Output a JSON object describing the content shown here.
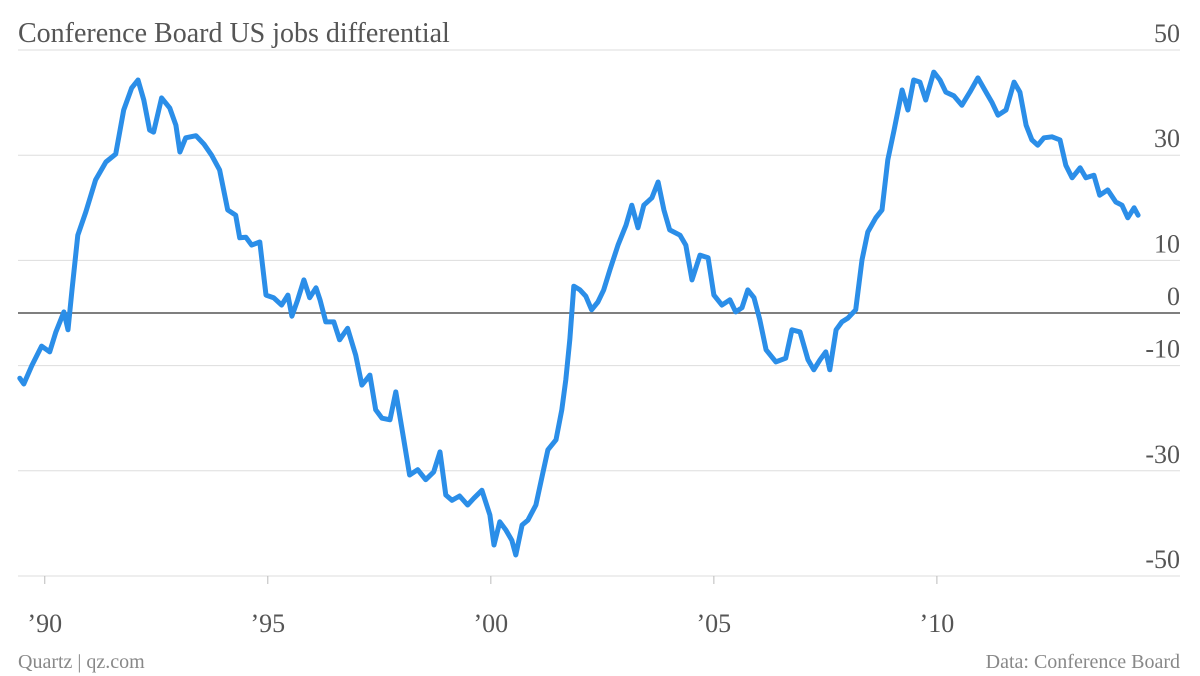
{
  "chart_data": {
    "type": "line",
    "title": "Conference Board US jobs differential",
    "source": "Data: Conference Board",
    "credit": "Quartz | qz.com",
    "color": "#2b8ee8",
    "xlim": [
      1989.4,
      2015.45
    ],
    "ylim": [
      -50,
      50
    ],
    "xticks": [
      {
        "value": 1990,
        "label": "’90"
      },
      {
        "value": 1995,
        "label": "’95"
      },
      {
        "value": 2000,
        "label": "’00"
      },
      {
        "value": 2005,
        "label": "’05"
      },
      {
        "value": 2010,
        "label": "’10"
      }
    ],
    "yticks": [
      50,
      30,
      10,
      0,
      -10,
      -30,
      -50
    ],
    "grid": true,
    "x": [
      1989.44,
      1989.53,
      1989.71,
      1989.93,
      1990.11,
      1990.25,
      1990.43,
      1990.52,
      1990.61,
      1990.74,
      1990.92,
      1991.14,
      1991.37,
      1991.59,
      1991.77,
      1991.95,
      1992.09,
      1992.22,
      1992.35,
      1992.44,
      1992.62,
      1992.8,
      1992.94,
      1993.03,
      1993.16,
      1993.39,
      1993.57,
      1993.74,
      1993.92,
      1994.1,
      1994.28,
      1994.37,
      1994.51,
      1994.64,
      1994.82,
      1994.96,
      1995.13,
      1995.31,
      1995.45,
      1995.54,
      1995.67,
      1995.81,
      1995.94,
      1996.08,
      1996.17,
      1996.3,
      1996.48,
      1996.61,
      1996.79,
      1996.97,
      1997.11,
      1997.29,
      1997.42,
      1997.56,
      1997.74,
      1997.87,
      1998.05,
      1998.18,
      1998.36,
      1998.54,
      1998.72,
      1998.86,
      1998.99,
      1999.13,
      1999.3,
      1999.48,
      1999.62,
      1999.8,
      1999.98,
      2000.07,
      2000.2,
      2000.34,
      2000.47,
      2000.56,
      2000.7,
      2000.83,
      2001.01,
      2001.14,
      2001.28,
      2001.46,
      2001.59,
      2001.68,
      2001.77,
      2001.86,
      2002.0,
      2002.13,
      2002.26,
      2002.4,
      2002.53,
      2002.67,
      2002.85,
      2003.03,
      2003.16,
      2003.3,
      2003.43,
      2003.61,
      2003.75,
      2003.88,
      2004.01,
      2004.24,
      2004.37,
      2004.51,
      2004.69,
      2004.87,
      2005.0,
      2005.18,
      2005.36,
      2005.49,
      2005.63,
      2005.76,
      2005.9,
      2006.03,
      2006.17,
      2006.39,
      2006.61,
      2006.75,
      2006.93,
      2007.11,
      2007.24,
      2007.38,
      2007.51,
      2007.6,
      2007.74,
      2007.87,
      2008.0,
      2008.18,
      2008.32,
      2008.45,
      2008.63,
      2008.77,
      2008.9,
      2009.04,
      2009.22,
      2009.35,
      2009.48,
      2009.62,
      2009.75,
      2009.93,
      2010.07,
      2010.2,
      2010.38,
      2010.56,
      2010.74,
      2010.92,
      2011.1,
      2011.23,
      2011.37,
      2011.55,
      2011.73,
      2011.86,
      2012.0,
      2012.13,
      2012.26,
      2012.4,
      2012.58,
      2012.76,
      2012.89,
      2013.03,
      2013.21,
      2013.34,
      2013.52,
      2013.65,
      2013.83,
      2014.01,
      2014.15,
      2014.28,
      2014.42,
      2014.51
    ],
    "values": [
      -12.4,
      -13.5,
      -10,
      -6.3,
      -7.4,
      -3.6,
      0.2,
      -3.2,
      4.4,
      14.8,
      19.2,
      25.3,
      28.7,
      30.2,
      38.6,
      42.8,
      44.3,
      40.5,
      34.8,
      34.4,
      40.9,
      39,
      35.7,
      30.6,
      33.3,
      33.7,
      32.1,
      30,
      27.2,
      19.6,
      18.6,
      14.3,
      14.4,
      12.9,
      13.5,
      3.4,
      2.9,
      1.5,
      3.4,
      -0.6,
      2.5,
      6.3,
      2.9,
      4.8,
      2.5,
      -1.7,
      -1.7,
      -5.1,
      -2.9,
      -8,
      -13.7,
      -11.8,
      -18.4,
      -20,
      -20.3,
      -15,
      -24.1,
      -30.8,
      -29.8,
      -31.7,
      -30.2,
      -26.4,
      -34.6,
      -35.6,
      -34.8,
      -36.5,
      -35.2,
      -33.7,
      -38.4,
      -44.1,
      -39.7,
      -41.3,
      -43.2,
      -46,
      -40.3,
      -39.4,
      -36.5,
      -31.4,
      -26,
      -24.1,
      -18.4,
      -12.7,
      -5.1,
      5.1,
      4.4,
      3.2,
      0.6,
      2.1,
      4.4,
      8.2,
      12.9,
      16.7,
      20.5,
      16.2,
      20.5,
      21.9,
      24.9,
      19.6,
      15.8,
      14.8,
      12.9,
      6.3,
      11,
      10.5,
      3.4,
      1.5,
      2.5,
      0.2,
      1,
      4.4,
      2.9,
      -1.3,
      -7,
      -9.3,
      -8.6,
      -3.2,
      -3.6,
      -8.9,
      -10.8,
      -8.9,
      -7.4,
      -10.8,
      -3.2,
      -1.7,
      -1,
      0.6,
      10.1,
      15.4,
      18.1,
      19.6,
      29.1,
      34.8,
      42.4,
      38.6,
      44.3,
      43.9,
      40.5,
      45.8,
      44.3,
      42,
      41.3,
      39.5,
      42,
      44.7,
      42,
      40.1,
      37.6,
      38.6,
      43.9,
      42,
      35.7,
      32.9,
      31.9,
      33.3,
      33.5,
      32.9,
      28.1,
      25.7,
      27.6,
      25.7,
      26.2,
      22.4,
      23.4,
      21.1,
      20.5,
      18.1,
      20,
      18.6
    ]
  }
}
